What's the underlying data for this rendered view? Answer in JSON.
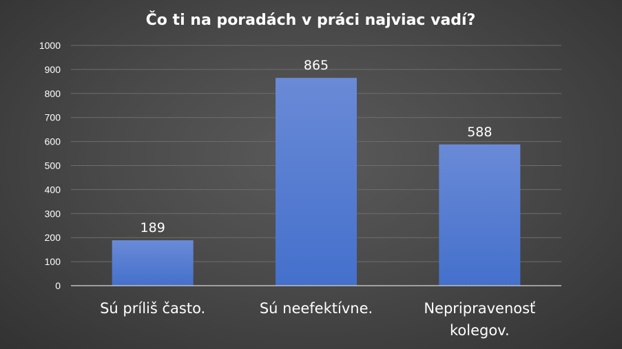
{
  "chart_data": {
    "type": "bar",
    "title": "Čo ti na poradách v práci najviac vadí?",
    "categories": [
      [
        "Sú príliš často."
      ],
      [
        "Sú neefektívne."
      ],
      [
        "Nepripravenosť",
        "kolegov."
      ]
    ],
    "values": [
      189,
      865,
      588
    ],
    "data_labels": [
      "189",
      "865",
      "588"
    ],
    "ylim": [
      0,
      1000
    ],
    "yticks": [
      "0",
      "100",
      "200",
      "300",
      "400",
      "500",
      "600",
      "700",
      "800",
      "900",
      "1000"
    ],
    "grid": true,
    "xlabel": "",
    "ylabel": "",
    "bar_color_top": "#6a8ad6",
    "bar_color_bottom": "#4470cc"
  }
}
